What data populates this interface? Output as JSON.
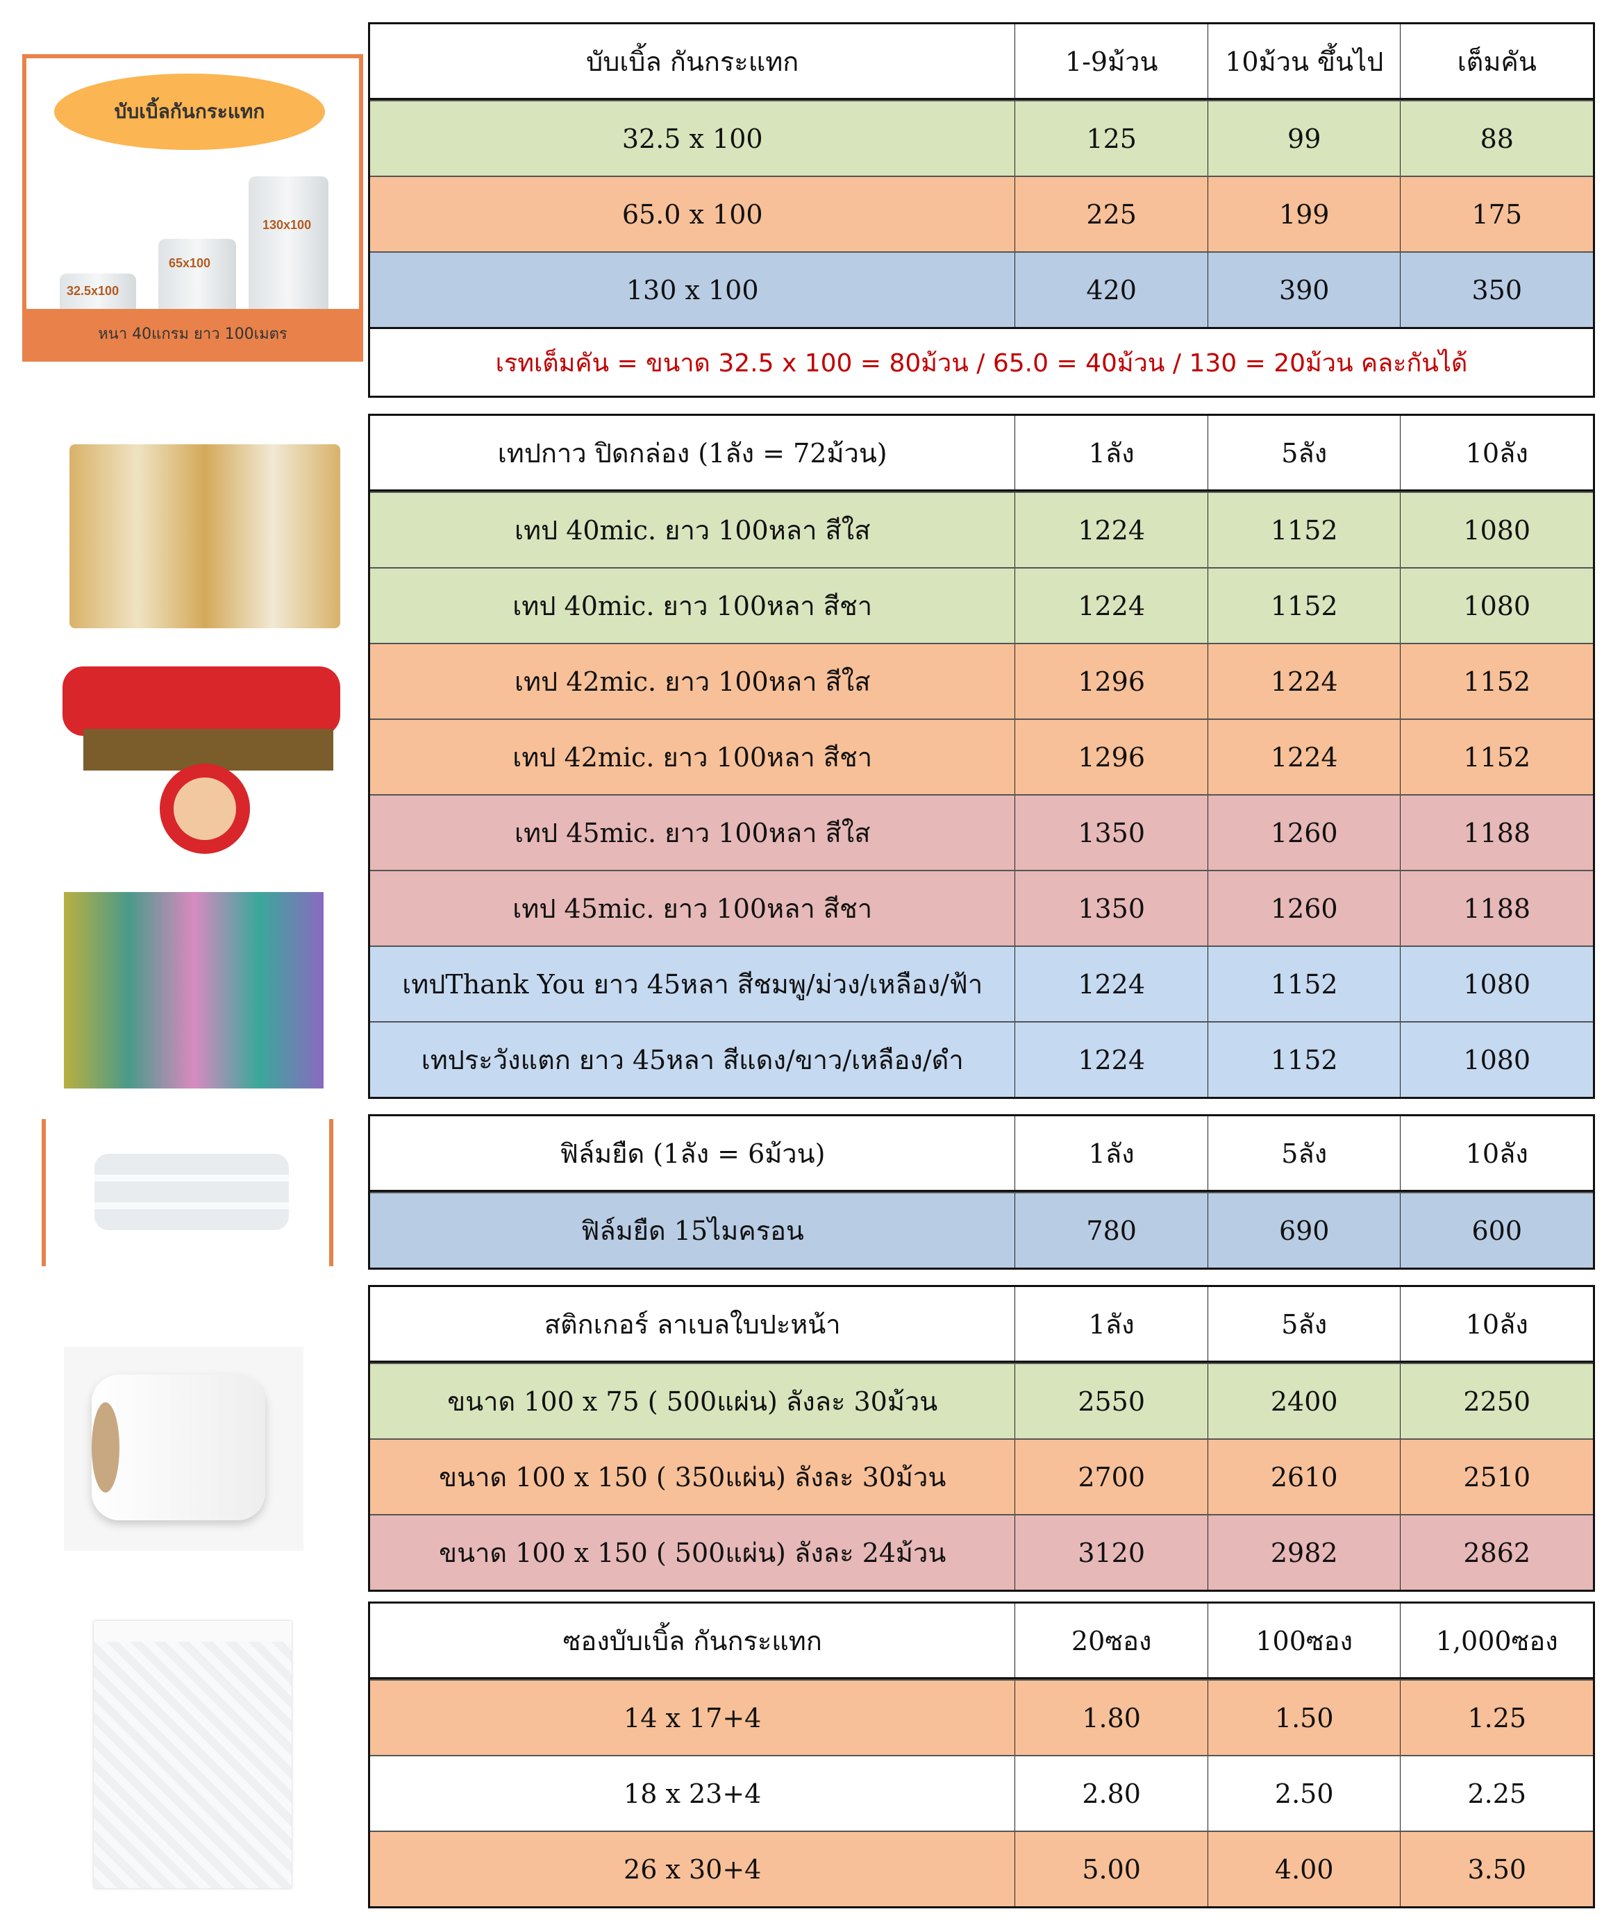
{
  "colors": {
    "green": "#d8e4bc",
    "orange": "#f8c098",
    "blue": "#b8cce4",
    "pink": "#e6b8b7",
    "lightblue": "#c5d9f1",
    "white": "#ffffff",
    "note_red": "#c00000",
    "accent_orange": "#e8824a"
  },
  "promo_image": {
    "title": "บับเบิ้ลกันกระแทก",
    "sizes": [
      "32.5x100",
      "65x100",
      "130x100"
    ],
    "caption": "หนา 40แกรม ยาว 100เมตร"
  },
  "tables": [
    {
      "header": [
        "บับเบิ้ล กันกระแทก",
        "1-9ม้วน",
        "10ม้วน ขึ้นไป",
        "เต็มคัน"
      ],
      "rows": [
        {
          "cells": [
            "32.5 x 100",
            "125",
            "99",
            "88"
          ],
          "color": "green"
        },
        {
          "cells": [
            "65.0 x 100",
            "225",
            "199",
            "175"
          ],
          "color": "orange"
        },
        {
          "cells": [
            "130 x 100",
            "420",
            "390",
            "350"
          ],
          "color": "blue"
        }
      ],
      "note": "เรทเต็มคัน = ขนาด 32.5 x 100 = 80ม้วน / 65.0 = 40ม้วน / 130 = 20ม้วน คละกันได้"
    },
    {
      "header": [
        "เทปกาว ปิดกล่อง (1ลัง = 72ม้วน)",
        "1ลัง",
        "5ลัง",
        "10ลัง"
      ],
      "rows": [
        {
          "cells": [
            "เทป 40mic. ยาว 100หลา สีใส",
            "1224",
            "1152",
            "1080"
          ],
          "color": "green"
        },
        {
          "cells": [
            "เทป 40mic. ยาว 100หลา สีชา",
            "1224",
            "1152",
            "1080"
          ],
          "color": "green"
        },
        {
          "cells": [
            "เทป 42mic. ยาว 100หลา สีใส",
            "1296",
            "1224",
            "1152"
          ],
          "color": "orange"
        },
        {
          "cells": [
            "เทป 42mic. ยาว 100หลา สีชา",
            "1296",
            "1224",
            "1152"
          ],
          "color": "orange"
        },
        {
          "cells": [
            "เทป 45mic. ยาว 100หลา สีใส",
            "1350",
            "1260",
            "1188"
          ],
          "color": "pink"
        },
        {
          "cells": [
            "เทป 45mic. ยาว 100หลา สีชา",
            "1350",
            "1260",
            "1188"
          ],
          "color": "pink"
        },
        {
          "cells": [
            "เทปThank You ยาว 45หลา สีชมพู/ม่วง/เหลือง/ฟ้า",
            "1224",
            "1152",
            "1080"
          ],
          "color": "lightblue"
        },
        {
          "cells": [
            "เทประวังแตก ยาว 45หลา สีแดง/ขาว/เหลือง/ดำ",
            "1224",
            "1152",
            "1080"
          ],
          "color": "lightblue"
        }
      ]
    },
    {
      "header": [
        "ฟิล์มยืด (1ลัง = 6ม้วน)",
        "1ลัง",
        "5ลัง",
        "10ลัง"
      ],
      "rows": [
        {
          "cells": [
            "ฟิล์มยืด 15ไมครอน",
            "780",
            "690",
            "600"
          ],
          "color": "blue"
        }
      ]
    },
    {
      "header": [
        "สติกเกอร์ ลาเบลใบปะหน้า",
        "1ลัง",
        "5ลัง",
        "10ลัง"
      ],
      "rows": [
        {
          "cells": [
            "ขนาด 100 x 75 ( 500แผ่น) ลังละ 30ม้วน",
            "2550",
            "2400",
            "2250"
          ],
          "color": "green"
        },
        {
          "cells": [
            "ขนาด 100 x 150 ( 350แผ่น) ลังละ 30ม้วน",
            "2700",
            "2610",
            "2510"
          ],
          "color": "orange"
        },
        {
          "cells": [
            "ขนาด 100 x 150 ( 500แผ่น) ลังละ 24ม้วน",
            "3120",
            "2982",
            "2862"
          ],
          "color": "pink"
        }
      ]
    },
    {
      "header": [
        "ซองบับเบิ้ล กันกระแทก",
        "20ซอง",
        "100ซอง",
        "1,000ซอง"
      ],
      "rows": [
        {
          "cells": [
            "14 x 17+4",
            "1.80",
            "1.50",
            "1.25"
          ],
          "color": "orange"
        },
        {
          "cells": [
            "18 x 23+4",
            "2.80",
            "2.50",
            "2.25"
          ],
          "color": "white"
        },
        {
          "cells": [
            "26 x 30+4",
            "5.00",
            "4.00",
            "3.50"
          ],
          "color": "orange"
        }
      ]
    }
  ]
}
